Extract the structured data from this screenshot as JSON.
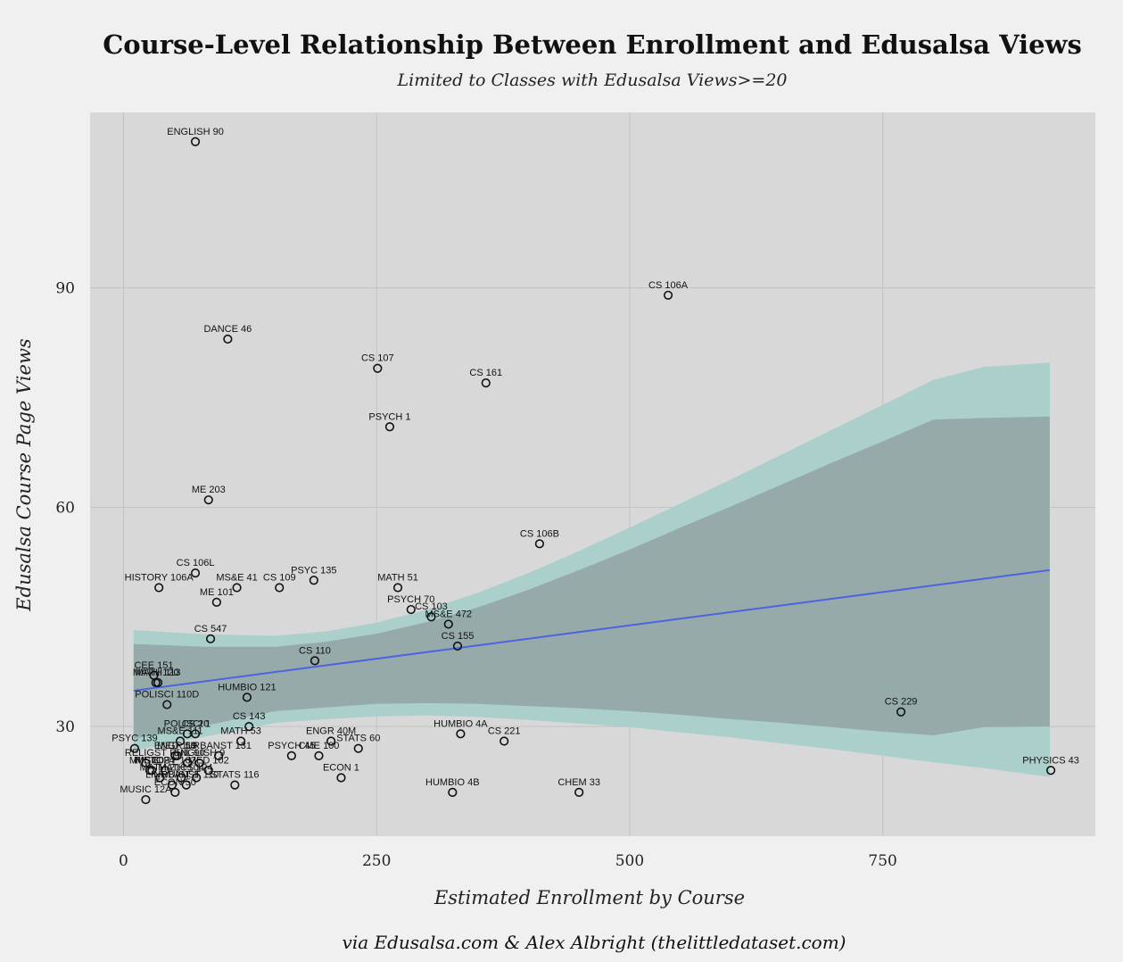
{
  "chart_data": {
    "type": "scatter",
    "title": "Course-Level Relationship Between Enrollment and Edusalsa Views",
    "subtitle": "Limited to Classes with Edusalsa Views>=20",
    "xlabel": "Estimated Enrollment by Course",
    "ylabel": "Edusalsa Course Page Views",
    "caption": "via Edusalsa.com & Alex Albright (thelittledataset.com)",
    "xlim": [
      -33,
      960
    ],
    "ylim": [
      15,
      114
    ],
    "x_ticks": [
      0,
      250,
      500,
      750
    ],
    "y_ticks": [
      30,
      60,
      90
    ],
    "grid": true,
    "colors": {
      "panel": "#d8d8d8",
      "background": "#f0f0f0",
      "grid": "#c2c2c2",
      "fit_line": "#4c64e0",
      "band_outer": "#a9cfca",
      "band_inner": "#95a9a6",
      "points": "#111111"
    },
    "fit": {
      "x": [
        10,
        915
      ],
      "y": [
        34.9,
        51.4
      ]
    },
    "bands": {
      "outer": {
        "x": [
          10,
          80,
          150,
          200,
          250,
          300,
          350,
          400,
          450,
          500,
          550,
          600,
          650,
          700,
          750,
          800,
          850,
          915
        ],
        "upper": [
          43.2,
          42.6,
          42.4,
          43.0,
          44.2,
          46.0,
          48.3,
          51.0,
          54.0,
          57.2,
          60.5,
          63.8,
          67.2,
          70.6,
          74.0,
          77.4,
          79.2,
          79.8
        ],
        "lower": [
          26.7,
          28.6,
          30.5,
          31.0,
          31.4,
          31.5,
          31.3,
          30.9,
          30.4,
          29.9,
          29.2,
          28.5,
          27.7,
          26.9,
          26.0,
          25.1,
          24.3,
          23.1
        ]
      },
      "inner": {
        "x": [
          10,
          80,
          150,
          200,
          250,
          300,
          350,
          400,
          450,
          500,
          550,
          600,
          650,
          700,
          750,
          800,
          850,
          915
        ],
        "upper": [
          41.3,
          40.9,
          40.9,
          41.6,
          42.7,
          44.3,
          46.3,
          48.7,
          51.4,
          54.2,
          57.2,
          60.1,
          63.1,
          66.1,
          69.0,
          72.0,
          72.2,
          72.4
        ],
        "lower": [
          28.3,
          30.1,
          32.1,
          32.6,
          33.1,
          33.2,
          33.1,
          32.8,
          32.5,
          32.1,
          31.6,
          31.0,
          30.5,
          29.9,
          29.3,
          28.8,
          29.9,
          30.0
        ]
      }
    },
    "points": [
      {
        "label": "ENGLISH 90",
        "x": 71,
        "y": 110
      },
      {
        "label": "CS 106A",
        "x": 538,
        "y": 89
      },
      {
        "label": "DANCE 46",
        "x": 103,
        "y": 83
      },
      {
        "label": "CS 107",
        "x": 251,
        "y": 79
      },
      {
        "label": "CS 161",
        "x": 358,
        "y": 77
      },
      {
        "label": "PSYCH 1",
        "x": 263,
        "y": 71
      },
      {
        "label": "ME 203",
        "x": 84,
        "y": 61
      },
      {
        "label": "CS 106B",
        "x": 411,
        "y": 55
      },
      {
        "label": "CS 106L",
        "x": 71,
        "y": 51
      },
      {
        "label": "HISTORY 106A",
        "x": 35,
        "y": 49
      },
      {
        "label": "MS&E 41",
        "x": 112,
        "y": 49
      },
      {
        "label": "CS 109",
        "x": 154,
        "y": 49
      },
      {
        "label": "PSYC 135",
        "x": 188,
        "y": 50
      },
      {
        "label": "MATH 51",
        "x": 271,
        "y": 49
      },
      {
        "label": "ME 101",
        "x": 92,
        "y": 47
      },
      {
        "label": "PSYCH 70",
        "x": 284,
        "y": 46
      },
      {
        "label": "CS 103",
        "x": 304,
        "y": 45
      },
      {
        "label": "MS&E 472",
        "x": 321,
        "y": 44
      },
      {
        "label": "CS 547",
        "x": 86,
        "y": 42
      },
      {
        "label": "CS 155",
        "x": 330,
        "y": 41
      },
      {
        "label": "CS 110",
        "x": 189,
        "y": 39
      },
      {
        "label": "CEE 151",
        "x": 30,
        "y": 37
      },
      {
        "label": "MATH 120",
        "x": 32,
        "y": 36
      },
      {
        "label": "MATH 113",
        "x": 34,
        "y": 36
      },
      {
        "label": "HUMBIO 121",
        "x": 122,
        "y": 34
      },
      {
        "label": "POLISCI 110D",
        "x": 43,
        "y": 33
      },
      {
        "label": "CS 229",
        "x": 768,
        "y": 32
      },
      {
        "label": "CS 143",
        "x": 124,
        "y": 30
      },
      {
        "label": "POLISCI 1",
        "x": 63,
        "y": 29
      },
      {
        "label": "CS 20",
        "x": 71,
        "y": 29
      },
      {
        "label": "MS&E 111",
        "x": 56,
        "y": 28
      },
      {
        "label": "HUMBIO 4A",
        "x": 333,
        "y": 29
      },
      {
        "label": "MATH 53",
        "x": 116,
        "y": 28
      },
      {
        "label": "ENGR 40M",
        "x": 205,
        "y": 28
      },
      {
        "label": "CS 221",
        "x": 376,
        "y": 28
      },
      {
        "label": "STATS 60",
        "x": 232,
        "y": 27
      },
      {
        "label": "PSYC 139",
        "x": 11,
        "y": 27
      },
      {
        "label": "ENGR 50",
        "x": 51,
        "y": 26
      },
      {
        "label": "MED 119",
        "x": 53,
        "y": 26
      },
      {
        "label": "URBANST 131",
        "x": 94,
        "y": 26
      },
      {
        "label": "PSYCH 45",
        "x": 166,
        "y": 26
      },
      {
        "label": "CME 100",
        "x": 193,
        "y": 26
      },
      {
        "label": "ENGLISH 9",
        "x": 75,
        "y": 25
      },
      {
        "label": "PHIL 90",
        "x": 63,
        "y": 25
      },
      {
        "label": "RELIGST",
        "x": 22,
        "y": 25
      },
      {
        "label": "MUSIC 24",
        "x": 28,
        "y": 24
      },
      {
        "label": "ME 30",
        "x": 26,
        "y": 24
      },
      {
        "label": "HISTORY 102",
        "x": 41,
        "y": 24
      },
      {
        "label": "PHYSICS 43",
        "x": 916,
        "y": 24
      },
      {
        "label": "MED 102",
        "x": 84,
        "y": 24
      },
      {
        "label": "MATH 21",
        "x": 36,
        "y": 23
      },
      {
        "label": "ECON 1",
        "x": 215,
        "y": 23
      },
      {
        "label": "MATH 104",
        "x": 57,
        "y": 23
      },
      {
        "label": "CS 124",
        "x": 72,
        "y": 23
      },
      {
        "label": "STATS 116",
        "x": 110,
        "y": 22
      },
      {
        "label": "URBANST 110",
        "x": 62,
        "y": 22
      },
      {
        "label": "LINGUIST 1",
        "x": 48,
        "y": 22
      },
      {
        "label": "HUMBIO 4B",
        "x": 325,
        "y": 21
      },
      {
        "label": "CHEM 33",
        "x": 450,
        "y": 21
      },
      {
        "label": "ECON 50",
        "x": 51,
        "y": 21
      },
      {
        "label": "MUSIC 12A",
        "x": 22,
        "y": 20
      }
    ]
  }
}
